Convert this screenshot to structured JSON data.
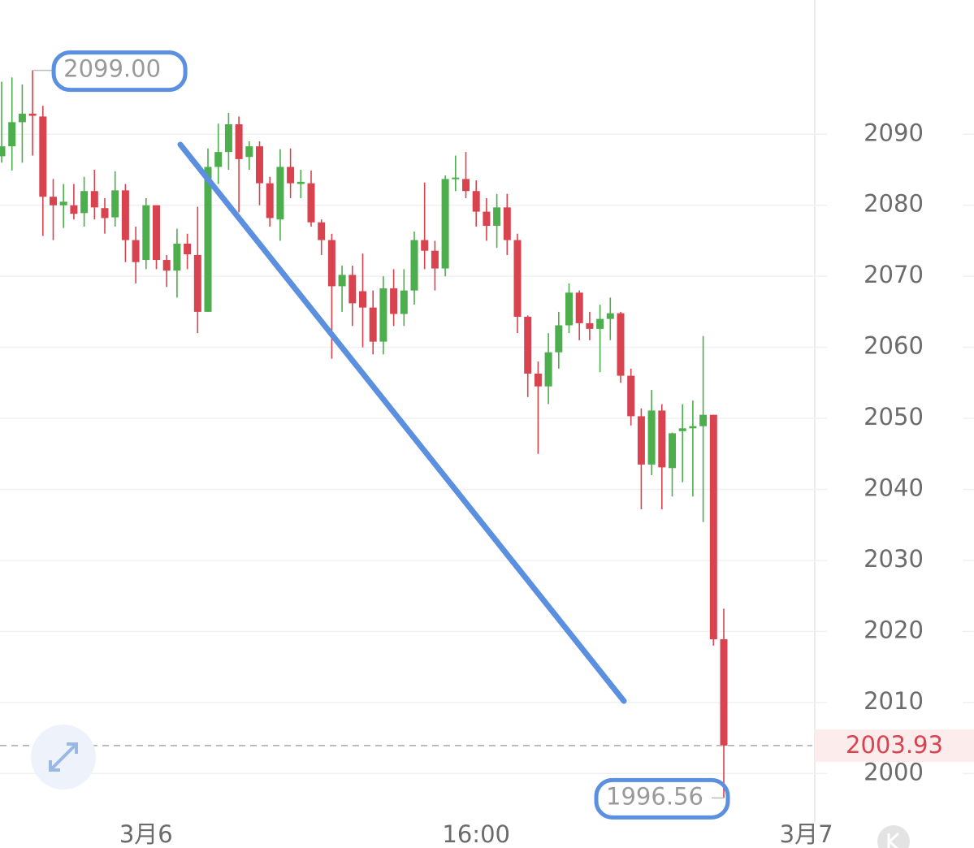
{
  "chart_data": {
    "type": "candlestick",
    "open": [
      2086.9,
      2088.3,
      2091.7,
      2092.9,
      2092.5,
      2081.2,
      2080,
      2080,
      2078.9,
      2082,
      2079.6,
      2078.3,
      2082.1,
      2075.1,
      2072.3,
      2080,
      2072.3,
      2070.8,
      2074.6,
      2073,
      2065,
      2085.4,
      2087.5,
      2091.4,
      2086.8,
      2088.3,
      2083.1,
      2078,
      2085.4,
      2083,
      2083.1,
      2077.6,
      2075.1,
      2068.6,
      2070.2,
      2067.9,
      2065.6,
      2060.8,
      2068.3,
      2064.7,
      2068,
      2075.1,
      2073.6,
      2071.1,
      2083.7,
      2083.7,
      2082,
      2079.1,
      2077.1,
      2079.7,
      2075.1,
      2064.3,
      2056.3,
      2054.5,
      2059.3,
      2063.1,
      2067.7,
      2063.4,
      2062.6,
      2064,
      2064.8,
      2056,
      2050.3,
      2043.5,
      2051.1,
      2043,
      2048.2,
      2048.6,
      2048.9,
      2050.5,
      2018.9
    ],
    "high": [
      2097.4,
      2098,
      2097,
      2099,
      2094,
      2083.7,
      2083,
      2083,
      2084,
      2085,
      2081,
      2084.8,
      2083,
      2077,
      2081,
      2080,
      2073,
      2076.7,
      2076,
      2079.8,
      2088,
      2091.5,
      2093,
      2092.5,
      2089,
      2089,
      2084,
      2087.9,
      2088,
      2085,
      2084.9,
      2078,
      2076,
      2071.5,
      2071.5,
      2073.2,
      2068,
      2070,
      2071,
      2071,
      2076.3,
      2083.2,
      2075,
      2084.2,
      2087,
      2087.5,
      2083.5,
      2081,
      2081.6,
      2081.6,
      2076,
      2064.5,
      2058,
      2062,
      2065,
      2069,
      2068,
      2065,
      2066,
      2067,
      2065,
      2057,
      2051.4,
      2054,
      2052,
      2048,
      2052,
      2052.5,
      2061.6,
      2050.5,
      2023.2
    ],
    "low": [
      2086,
      2084.9,
      2086,
      2087,
      2075.7,
      2075.1,
      2076.8,
      2078,
      2077,
      2078,
      2076,
      2077,
      2072,
      2069,
      2071,
      2071,
      2068.5,
      2067,
      2071,
      2062,
      2065,
      2083,
      2085,
      2079,
      2085,
      2080,
      2077,
      2075,
      2081,
      2081,
      2077,
      2073,
      2058.4,
      2065,
      2063,
      2060,
      2059,
      2059,
      2063,
      2063,
      2066,
      2071,
      2068,
      2070,
      2082,
      2081,
      2077,
      2075,
      2074,
      2073,
      2062,
      2053,
      2045,
      2052,
      2057,
      2062,
      2061,
      2061,
      2056.5,
      2061,
      2055,
      2049,
      2037.2,
      2042,
      2037.2,
      2039,
      2041,
      2039,
      2035.4,
      2018,
      1996.56
    ],
    "close": [
      2088.3,
      2091.7,
      2092.9,
      2092.6,
      2081.2,
      2080,
      2080.5,
      2078.8,
      2082,
      2079.7,
      2078.2,
      2082.1,
      2075.1,
      2072,
      2080,
      2072.3,
      2070.8,
      2074.6,
      2073.1,
      2065,
      2085.4,
      2087.5,
      2091.4,
      2086.5,
      2088.3,
      2083.1,
      2078.2,
      2085.4,
      2083.1,
      2083.3,
      2077.6,
      2075.1,
      2068.6,
      2070.2,
      2066.2,
      2065.6,
      2060.8,
      2068.3,
      2064.7,
      2068,
      2075.1,
      2073.6,
      2071.1,
      2083.7,
      2083.9,
      2082,
      2079.1,
      2077.1,
      2079.7,
      2075.1,
      2064.3,
      2056.3,
      2054.5,
      2059.3,
      2063.1,
      2067.7,
      2063.4,
      2062.6,
      2064,
      2064.8,
      2056,
      2050.3,
      2043.5,
      2051.1,
      2043.1,
      2047.9,
      2048.6,
      2048.9,
      2050.5,
      2018.9,
      2003.93
    ],
    "up_color": "#4cae4c",
    "down_color": "#d9434f",
    "ylim": [
      1993.4,
      2108.9
    ],
    "yticks": [
      2000,
      2010,
      2020,
      2030,
      2040,
      2050,
      2060,
      2070,
      2080,
      2090
    ],
    "xticks": [
      {
        "value": 14,
        "label": "3月6"
      },
      {
        "value": 46,
        "label": "16:00"
      },
      {
        "value": 78,
        "label": "3月7"
      }
    ],
    "grid": true,
    "last_price": {
      "value": 2003.93,
      "label": "2003.93"
    },
    "annotations": [
      {
        "value": 2099,
        "label": "2099.00",
        "index": 3
      },
      {
        "value": 1996.56,
        "label": "1996.56",
        "index": 70
      }
    ]
  }
}
